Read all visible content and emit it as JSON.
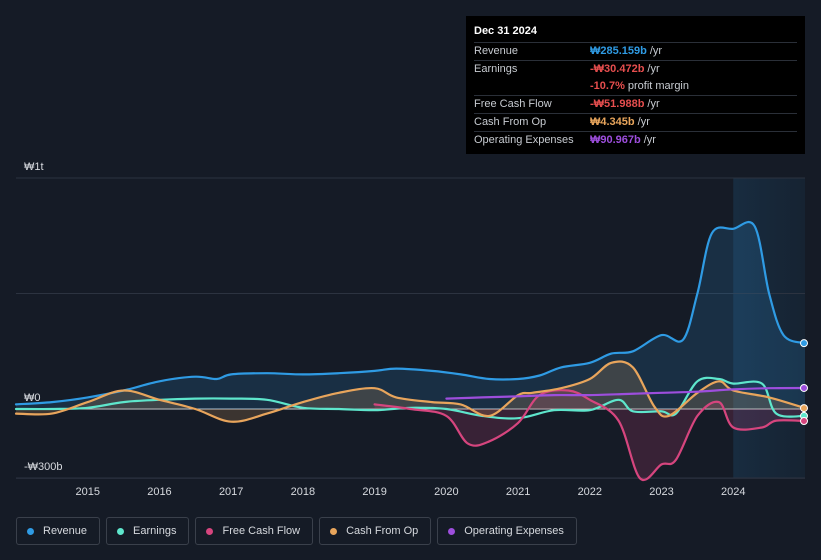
{
  "chart_data": {
    "type": "area",
    "title": "",
    "currency_symbol": "₩",
    "y_labels": [
      "₩1t",
      "₩0",
      "-₩300b"
    ],
    "ylim": [
      -300,
      1000
    ],
    "xlim": [
      2014.0,
      2025.0
    ],
    "x_ticks": [
      "2015",
      "2016",
      "2017",
      "2018",
      "2019",
      "2020",
      "2021",
      "2022",
      "2023",
      "2024"
    ],
    "forecast_start": 2024.0,
    "series": [
      {
        "name": "Revenue",
        "color": "#2f9be4",
        "fill": true,
        "points": [
          [
            2014.0,
            20
          ],
          [
            2014.5,
            30
          ],
          [
            2015.0,
            50
          ],
          [
            2015.5,
            80
          ],
          [
            2016.0,
            120
          ],
          [
            2016.5,
            140
          ],
          [
            2016.8,
            130
          ],
          [
            2017.0,
            150
          ],
          [
            2017.5,
            155
          ],
          [
            2018.0,
            150
          ],
          [
            2018.5,
            155
          ],
          [
            2019.0,
            165
          ],
          [
            2019.3,
            175
          ],
          [
            2019.8,
            165
          ],
          [
            2020.2,
            150
          ],
          [
            2020.6,
            130
          ],
          [
            2021.0,
            130
          ],
          [
            2021.3,
            145
          ],
          [
            2021.6,
            180
          ],
          [
            2022.0,
            200
          ],
          [
            2022.3,
            240
          ],
          [
            2022.6,
            250
          ],
          [
            2023.0,
            320
          ],
          [
            2023.3,
            300
          ],
          [
            2023.5,
            500
          ],
          [
            2023.7,
            760
          ],
          [
            2024.0,
            780
          ],
          [
            2024.3,
            790
          ],
          [
            2024.5,
            500
          ],
          [
            2024.7,
            320
          ],
          [
            2025.0,
            285
          ]
        ]
      },
      {
        "name": "Earnings",
        "color": "#5ee6cc",
        "fill": false,
        "points": [
          [
            2014.0,
            0
          ],
          [
            2014.5,
            0
          ],
          [
            2015.0,
            5
          ],
          [
            2015.5,
            30
          ],
          [
            2016.0,
            40
          ],
          [
            2016.5,
            45
          ],
          [
            2017.0,
            45
          ],
          [
            2017.5,
            40
          ],
          [
            2018.0,
            5
          ],
          [
            2018.5,
            0
          ],
          [
            2019.0,
            -5
          ],
          [
            2019.5,
            5
          ],
          [
            2020.0,
            0
          ],
          [
            2020.5,
            -30
          ],
          [
            2021.0,
            -40
          ],
          [
            2021.5,
            -5
          ],
          [
            2022.0,
            -5
          ],
          [
            2022.4,
            40
          ],
          [
            2022.6,
            -10
          ],
          [
            2023.0,
            -10
          ],
          [
            2023.2,
            -20
          ],
          [
            2023.5,
            120
          ],
          [
            2023.8,
            130
          ],
          [
            2024.0,
            110
          ],
          [
            2024.4,
            110
          ],
          [
            2024.6,
            -20
          ],
          [
            2025.0,
            -30
          ]
        ]
      },
      {
        "name": "Free Cash Flow",
        "color": "#d6457e",
        "fill": true,
        "points": [
          [
            2019.0,
            20
          ],
          [
            2019.5,
            0
          ],
          [
            2020.0,
            -30
          ],
          [
            2020.3,
            -150
          ],
          [
            2020.6,
            -140
          ],
          [
            2021.0,
            -60
          ],
          [
            2021.3,
            60
          ],
          [
            2021.7,
            80
          ],
          [
            2022.0,
            40
          ],
          [
            2022.4,
            -50
          ],
          [
            2022.7,
            -300
          ],
          [
            2023.0,
            -240
          ],
          [
            2023.2,
            -220
          ],
          [
            2023.5,
            -30
          ],
          [
            2023.8,
            30
          ],
          [
            2024.0,
            -80
          ],
          [
            2024.4,
            -80
          ],
          [
            2024.6,
            -50
          ],
          [
            2025.0,
            -52
          ]
        ]
      },
      {
        "name": "Cash From Op",
        "color": "#e8a55c",
        "fill": true,
        "points": [
          [
            2014.0,
            -20
          ],
          [
            2014.5,
            -20
          ],
          [
            2015.0,
            30
          ],
          [
            2015.5,
            80
          ],
          [
            2016.0,
            40
          ],
          [
            2016.5,
            0
          ],
          [
            2017.0,
            -55
          ],
          [
            2017.5,
            -20
          ],
          [
            2018.0,
            30
          ],
          [
            2018.5,
            70
          ],
          [
            2019.0,
            90
          ],
          [
            2019.3,
            50
          ],
          [
            2019.8,
            30
          ],
          [
            2020.2,
            20
          ],
          [
            2020.6,
            -30
          ],
          [
            2021.0,
            60
          ],
          [
            2021.2,
            70
          ],
          [
            2021.6,
            90
          ],
          [
            2022.0,
            130
          ],
          [
            2022.3,
            200
          ],
          [
            2022.6,
            180
          ],
          [
            2022.9,
            10
          ],
          [
            2023.1,
            -30
          ],
          [
            2023.5,
            70
          ],
          [
            2023.8,
            120
          ],
          [
            2024.0,
            80
          ],
          [
            2024.5,
            50
          ],
          [
            2025.0,
            4
          ]
        ]
      },
      {
        "name": "Operating Expenses",
        "color": "#9d4edd",
        "fill": false,
        "points": [
          [
            2020.0,
            45
          ],
          [
            2020.5,
            50
          ],
          [
            2021.0,
            55
          ],
          [
            2021.5,
            60
          ],
          [
            2022.0,
            60
          ],
          [
            2022.5,
            65
          ],
          [
            2023.0,
            70
          ],
          [
            2023.5,
            75
          ],
          [
            2024.0,
            85
          ],
          [
            2024.5,
            90
          ],
          [
            2025.0,
            91
          ]
        ]
      }
    ]
  },
  "tooltip": {
    "date": "Dec 31 2024",
    "rows": [
      {
        "label": "Revenue",
        "value": "₩285.159b",
        "unit": "/yr",
        "color": "#2f9be4"
      },
      {
        "label": "Earnings",
        "value": "-₩30.472b",
        "unit": "/yr",
        "color": "#e64e4e"
      },
      {
        "label": "",
        "value": "-10.7%",
        "unit": "profit margin",
        "color": "#e64e4e"
      },
      {
        "label": "Free Cash Flow",
        "value": "-₩51.988b",
        "unit": "/yr",
        "color": "#e64e4e"
      },
      {
        "label": "Cash From Op",
        "value": "₩4.345b",
        "unit": "/yr",
        "color": "#e8a55c"
      },
      {
        "label": "Operating Expenses",
        "value": "₩90.967b",
        "unit": "/yr",
        "color": "#9d4edd"
      }
    ]
  },
  "legend": [
    {
      "label": "Revenue",
      "color": "#2f9be4"
    },
    {
      "label": "Earnings",
      "color": "#5ee6cc"
    },
    {
      "label": "Free Cash Flow",
      "color": "#d6457e"
    },
    {
      "label": "Cash From Op",
      "color": "#e8a55c"
    },
    {
      "label": "Operating Expenses",
      "color": "#9d4edd"
    }
  ]
}
